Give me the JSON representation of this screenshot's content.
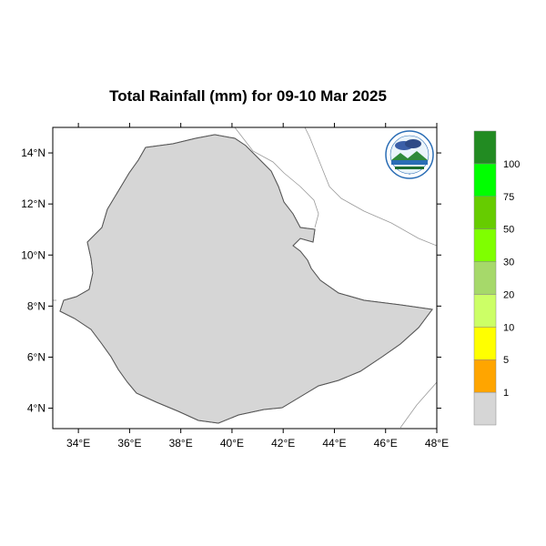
{
  "title": "Total Rainfall (mm) for 09-10 Mar 2025",
  "map": {
    "lon_range": [
      33,
      48
    ],
    "lat_range": [
      3.2,
      15
    ],
    "x_ticks": [
      "34°E",
      "36°E",
      "38°E",
      "40°E",
      "42°E",
      "44°E",
      "46°E",
      "48°E"
    ],
    "x_tick_values": [
      34,
      36,
      38,
      40,
      42,
      44,
      46,
      48
    ],
    "y_ticks": [
      "14°N",
      "12°N",
      "10°N",
      "8°N",
      "6°N",
      "4°N"
    ],
    "y_tick_values": [
      14,
      12,
      10,
      8,
      6,
      4
    ],
    "colors": {
      "no_rain": "#d6d6d6",
      "r1": "#ffa500",
      "r5": "#ffff00",
      "r10": "#ccff66",
      "r20": "#a6d96a",
      "r30": "#7fff00",
      "r50": "#66cc00",
      "r75": "#00ff00",
      "r100": "#228b22"
    }
  },
  "colorbar": {
    "labels": [
      "1",
      "5",
      "10",
      "20",
      "30",
      "50",
      "75",
      "100"
    ],
    "colors": [
      "#d6d6d6",
      "#ffa500",
      "#ffff00",
      "#ccff66",
      "#a6d96a",
      "#7fff00",
      "#66cc00",
      "#00ff00",
      "#228b22"
    ]
  },
  "logo": {
    "icon": "ethiopian-meteorology-institute-logo"
  }
}
